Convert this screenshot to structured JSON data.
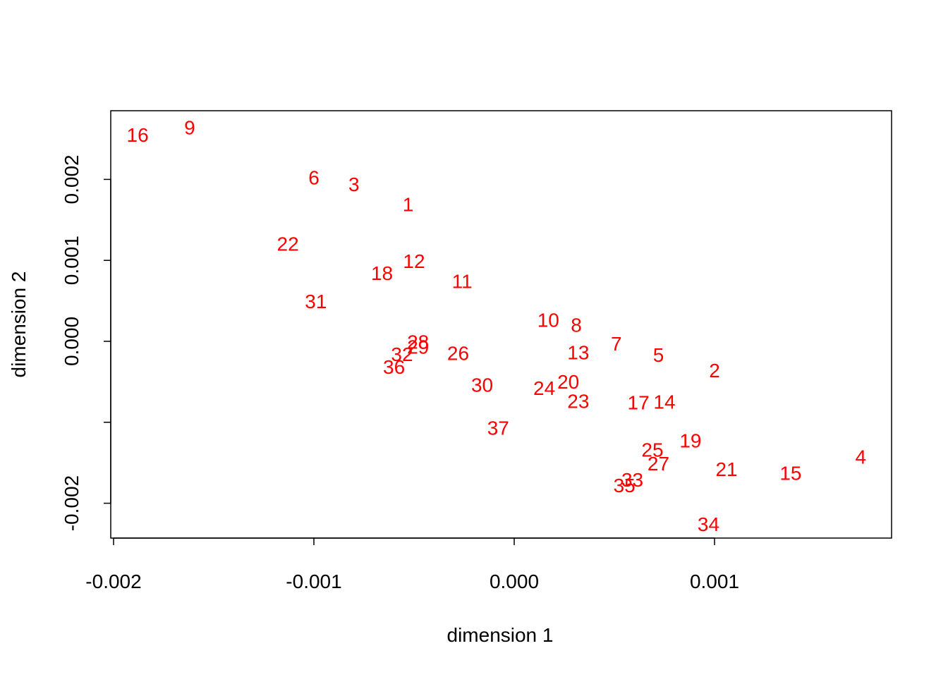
{
  "chart_data": {
    "type": "scatter",
    "title": "",
    "xlabel": "dimension 1",
    "ylabel": "dimension 2",
    "xlim": [
      -0.002,
      0.0019
    ],
    "ylim": [
      -0.0024,
      0.0027
    ],
    "x_ticks": [
      -0.002,
      -0.001,
      0.0,
      0.001
    ],
    "x_tick_labels": [
      "-0.002",
      "-0.001",
      "0.000",
      "0.001"
    ],
    "y_ticks": [
      0.002,
      0.001,
      0.0,
      -0.001,
      -0.002
    ],
    "y_tick_labels": [
      "0.002",
      "0.001",
      "0.000",
      "",
      "-0.002"
    ],
    "point_color": "#ff0000",
    "points": [
      {
        "label": "16",
        "x": -0.00188,
        "y": 0.00255
      },
      {
        "label": "9",
        "x": -0.00162,
        "y": 0.00264
      },
      {
        "label": "6",
        "x": -0.001,
        "y": 0.00202
      },
      {
        "label": "3",
        "x": -0.0008,
        "y": 0.00194
      },
      {
        "label": "1",
        "x": -0.00053,
        "y": 0.00169
      },
      {
        "label": "22",
        "x": -0.00113,
        "y": 0.0012
      },
      {
        "label": "12",
        "x": -0.0005,
        "y": 0.00099
      },
      {
        "label": "18",
        "x": -0.00066,
        "y": 0.00084
      },
      {
        "label": "11",
        "x": -0.00026,
        "y": 0.00074
      },
      {
        "label": "31",
        "x": -0.00099,
        "y": 0.00049
      },
      {
        "label": "10",
        "x": 0.00017,
        "y": 0.00026
      },
      {
        "label": "8",
        "x": 0.00031,
        "y": 0.0002
      },
      {
        "label": "7",
        "x": 0.00051,
        "y": -3e-05
      },
      {
        "label": "13",
        "x": 0.00032,
        "y": -0.00014
      },
      {
        "label": "5",
        "x": 0.00072,
        "y": -0.00017
      },
      {
        "label": "2",
        "x": 0.001,
        "y": -0.00036
      },
      {
        "label": "28",
        "x": -0.00048,
        "y": -1e-05
      },
      {
        "label": "29",
        "x": -0.00048,
        "y": -7e-05
      },
      {
        "label": "32",
        "x": -0.00056,
        "y": -0.00016
      },
      {
        "label": "26",
        "x": -0.00028,
        "y": -0.00015
      },
      {
        "label": "36",
        "x": -0.0006,
        "y": -0.00032
      },
      {
        "label": "30",
        "x": -0.00016,
        "y": -0.00054
      },
      {
        "label": "24",
        "x": 0.00015,
        "y": -0.00058
      },
      {
        "label": "20",
        "x": 0.00027,
        "y": -0.0005
      },
      {
        "label": "23",
        "x": 0.00032,
        "y": -0.00074
      },
      {
        "label": "17",
        "x": 0.00062,
        "y": -0.00076
      },
      {
        "label": "14",
        "x": 0.00075,
        "y": -0.00075
      },
      {
        "label": "37",
        "x": -8e-05,
        "y": -0.00107
      },
      {
        "label": "19",
        "x": 0.00088,
        "y": -0.00123
      },
      {
        "label": "25",
        "x": 0.00069,
        "y": -0.00134
      },
      {
        "label": "27",
        "x": 0.00072,
        "y": -0.00151
      },
      {
        "label": "4",
        "x": 0.00173,
        "y": -0.00143
      },
      {
        "label": "21",
        "x": 0.00106,
        "y": -0.00158
      },
      {
        "label": "15",
        "x": 0.00138,
        "y": -0.00163
      },
      {
        "label": "33",
        "x": 0.00059,
        "y": -0.00171
      },
      {
        "label": "35",
        "x": 0.00055,
        "y": -0.00178
      },
      {
        "label": "34",
        "x": 0.00097,
        "y": -0.00226
      }
    ]
  }
}
